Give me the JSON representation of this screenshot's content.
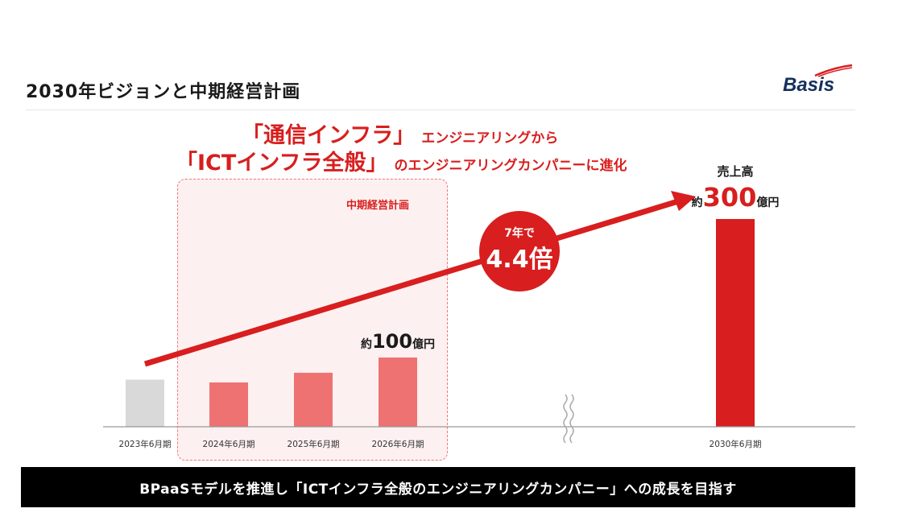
{
  "header": {
    "title": "2030年ビジョンと中期経営計画",
    "logo_text": "Basis"
  },
  "headline": {
    "line1_emphasis": "「通信インフラ」",
    "line1_rest": "エンジニアリングから",
    "line2_emphasis": "「ICTインフラ全般」",
    "line2_rest": "のエンジニアリングカンパニーに進化"
  },
  "plan": {
    "label": "中期経営計画"
  },
  "growth_badge": {
    "line1": "7年で",
    "line2": "4.4倍"
  },
  "footer": {
    "text": "BPaaSモデルを推進し「ICTインフラ全般のエンジニアリングカンパニー」への成長を目指す"
  },
  "colors": {
    "accent": "#d81e1e",
    "plan_bar": "#ef7272",
    "actual_bar": "#d9d9d9",
    "target_bar": "#d81e1e",
    "plan_bg": "#fdf0f0",
    "footer_bg": "#000000"
  },
  "chart_data": {
    "type": "bar",
    "categories": [
      "2023年6月期",
      "2024年6月期",
      "2025年6月期",
      "2026年6月期",
      "2030年6月期"
    ],
    "values": [
      68,
      64,
      78,
      100,
      300
    ],
    "axis_break_after": "2026年6月期",
    "annotations": [
      {
        "category": "2026年6月期",
        "prefix": "約",
        "value": "100",
        "unit": "億円"
      },
      {
        "category": "2030年6月期",
        "title": "売上高",
        "prefix": "約",
        "value": "300",
        "unit": "億円"
      }
    ],
    "ylim": [
      0,
      300
    ]
  }
}
